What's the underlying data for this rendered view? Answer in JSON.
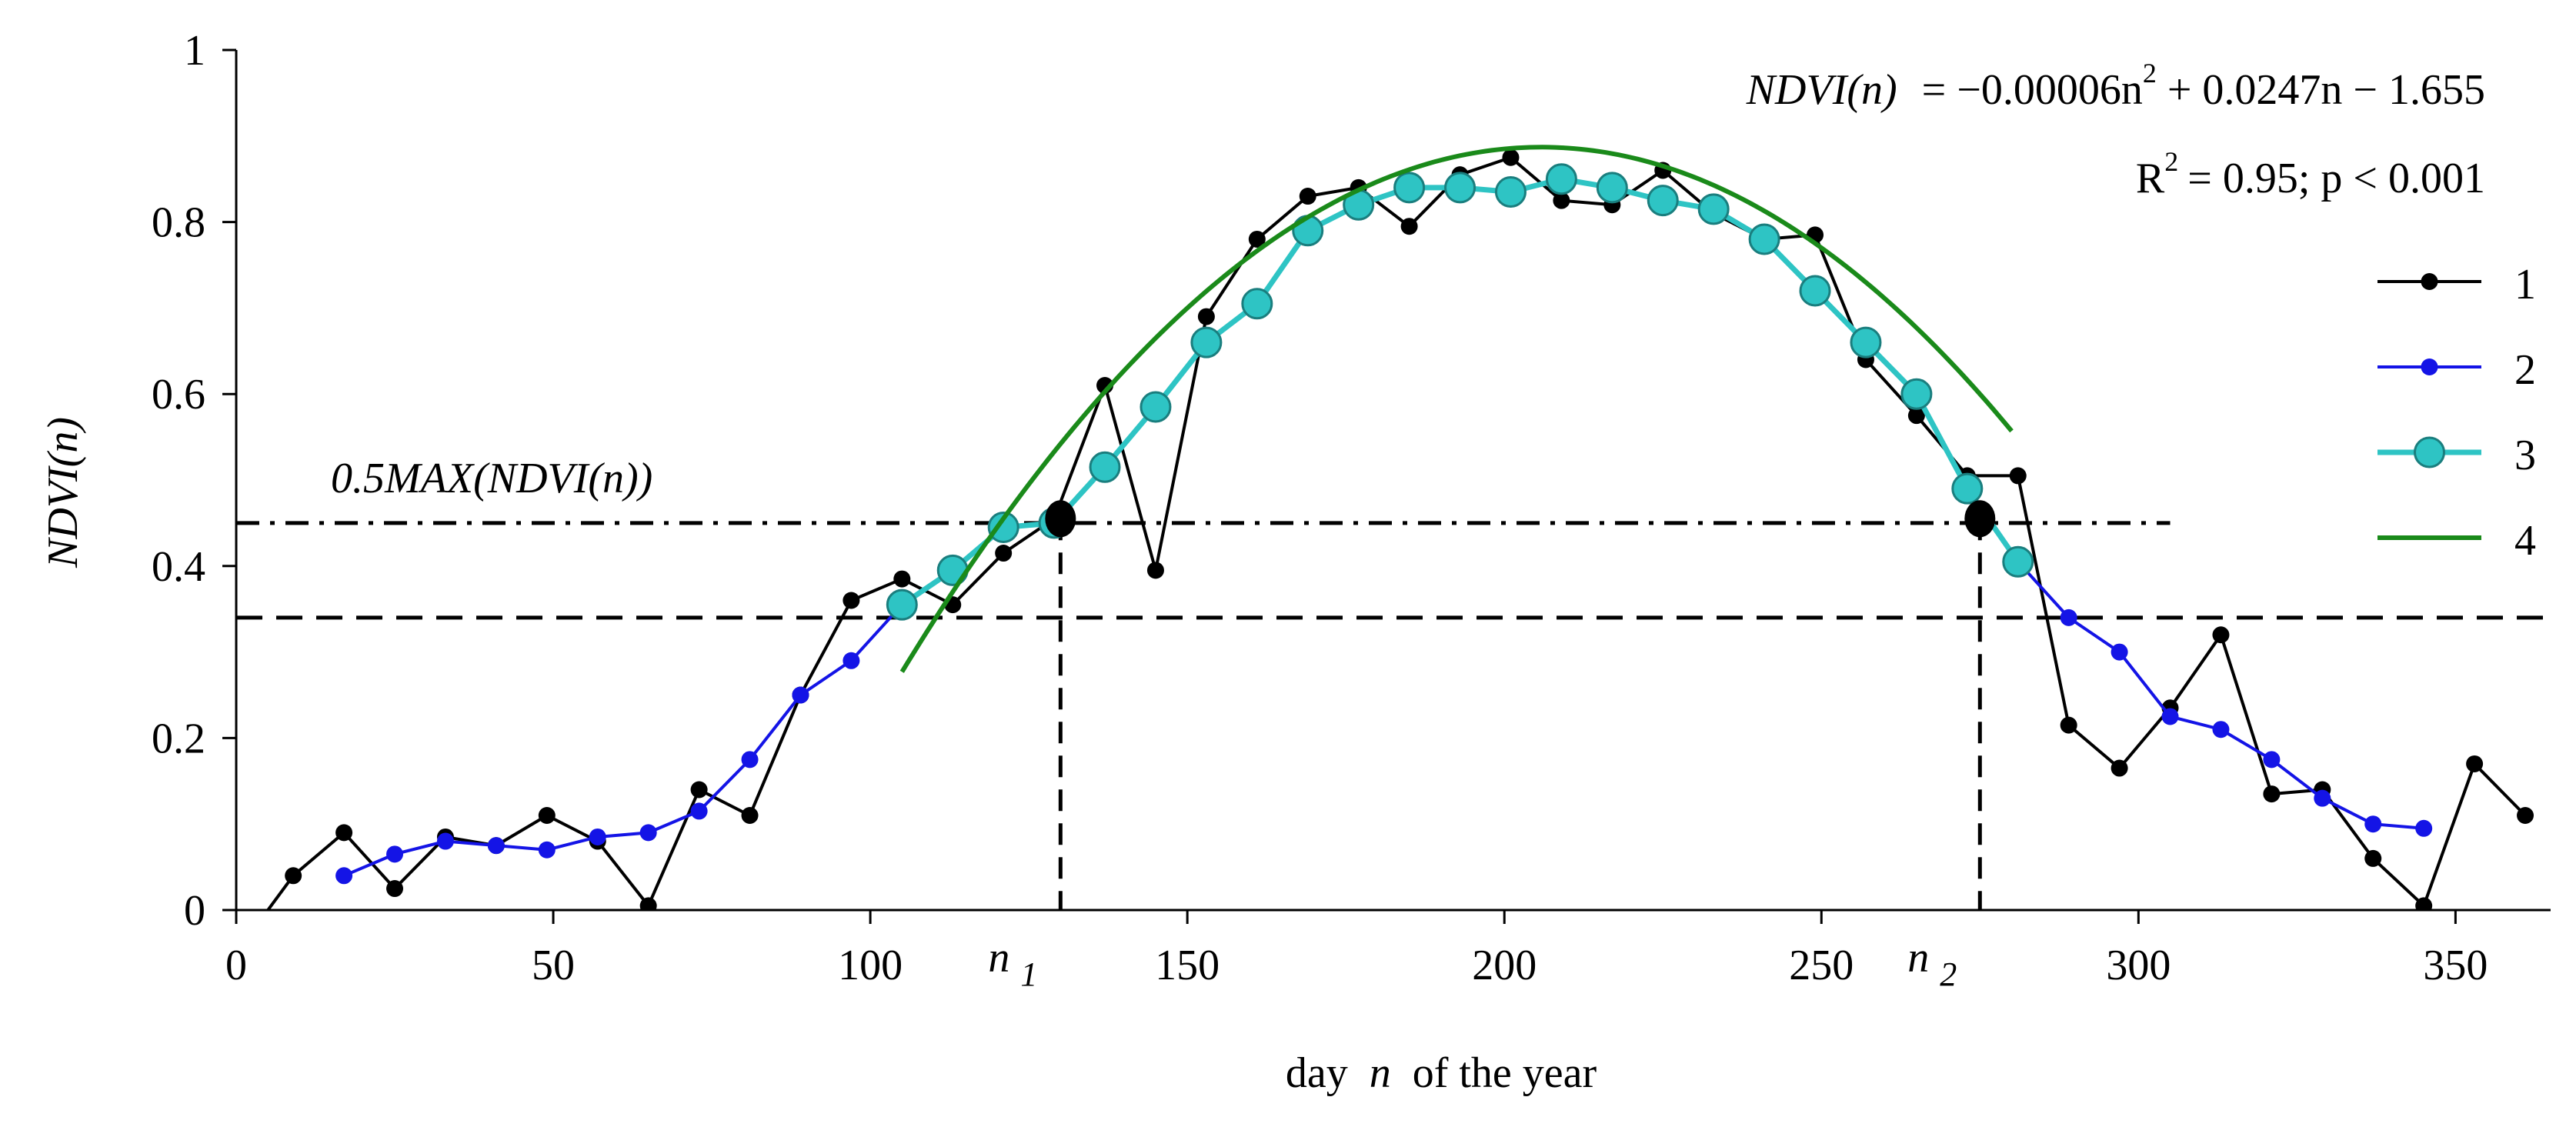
{
  "chart_data": {
    "type": "line",
    "x_axis": {
      "label_prefix": "day",
      "label_var": "n",
      "label_suffix": "of the year",
      "range": [
        0,
        365
      ],
      "ticks": [
        0,
        50,
        100,
        150,
        200,
        250,
        300,
        350
      ]
    },
    "y_axis": {
      "label": "NDVI(n)",
      "range": [
        0,
        1
      ],
      "ticks": [
        0,
        0.2,
        0.4,
        0.6,
        0.8,
        1
      ],
      "tick_labels": [
        "0",
        "0.2",
        "0.4",
        "0.6",
        "0.8",
        "1"
      ]
    },
    "equation": {
      "lhs": "NDVI(n)",
      "rhs_a": "= −0.00006n",
      "rhs_exp": "2",
      "rhs_b": "+ 0.0247n − 1.655",
      "r2_prefix": "R",
      "r2_exp": "2",
      "r2_rest": "= 0.95; p < 0.001"
    },
    "threshold_label": "0.5MAX(NDVI(n))",
    "threshold_levels": {
      "half_max": 0.45,
      "base": 0.34
    },
    "markers": [
      {
        "label": "n",
        "sub": "1",
        "x": 130,
        "y": 0.455
      },
      {
        "label": "n",
        "sub": "2",
        "x": 275,
        "y": 0.455
      }
    ],
    "legend": [
      "1",
      "2",
      "3",
      "4"
    ],
    "series": [
      {
        "name": "1",
        "color": "#000000",
        "marker": "dot",
        "x": [
          3,
          9,
          17,
          25,
          33,
          41,
          49,
          57,
          65,
          73,
          81,
          89,
          97,
          105,
          113,
          121,
          129,
          137,
          145,
          153,
          161,
          169,
          177,
          185,
          193,
          201,
          209,
          217,
          225,
          233,
          241,
          249,
          257,
          265,
          273,
          281,
          289,
          297,
          305,
          313,
          321,
          329,
          337,
          345,
          353,
          361
        ],
        "y": [
          -0.02,
          0.04,
          0.09,
          0.025,
          0.085,
          0.075,
          0.11,
          0.08,
          0.005,
          0.14,
          0.11,
          0.25,
          0.36,
          0.385,
          0.355,
          0.415,
          0.455,
          0.61,
          0.395,
          0.69,
          0.78,
          0.83,
          0.84,
          0.795,
          0.855,
          0.875,
          0.825,
          0.82,
          0.86,
          0.81,
          0.78,
          0.785,
          0.64,
          0.575,
          0.505,
          0.505,
          0.215,
          0.165,
          0.235,
          0.32,
          0.135,
          0.14,
          0.06,
          0.005,
          0.17,
          0.11
        ]
      },
      {
        "name": "2",
        "color": "#1414e6",
        "marker": "dot",
        "x": [
          17,
          25,
          33,
          41,
          49,
          57,
          65,
          73,
          81,
          89,
          97,
          105,
          281,
          289,
          297,
          305,
          313,
          321,
          329,
          337,
          345
        ],
        "y": [
          0.04,
          0.065,
          0.08,
          0.075,
          0.07,
          0.085,
          0.09,
          0.115,
          0.175,
          0.25,
          0.29,
          0.355,
          0.405,
          0.34,
          0.3,
          0.225,
          0.21,
          0.175,
          0.13,
          0.1,
          0.095
        ]
      },
      {
        "name": "3",
        "color": "#2ec4c4",
        "marker": "circle",
        "x": [
          105,
          113,
          121,
          129,
          137,
          145,
          153,
          161,
          169,
          177,
          185,
          193,
          201,
          209,
          217,
          225,
          233,
          241,
          249,
          257,
          265,
          273,
          281
        ],
        "y": [
          0.355,
          0.395,
          0.445,
          0.45,
          0.515,
          0.585,
          0.66,
          0.705,
          0.79,
          0.82,
          0.84,
          0.84,
          0.835,
          0.85,
          0.84,
          0.825,
          0.815,
          0.78,
          0.72,
          0.66,
          0.6,
          0.49,
          0.405
        ]
      },
      {
        "name": "4",
        "color": "#1a8a1a",
        "marker": "none",
        "curve": {
          "a": -6e-05,
          "b": 0.0247,
          "c": -1.655,
          "x_from": 105,
          "x_to": 280
        }
      }
    ]
  }
}
